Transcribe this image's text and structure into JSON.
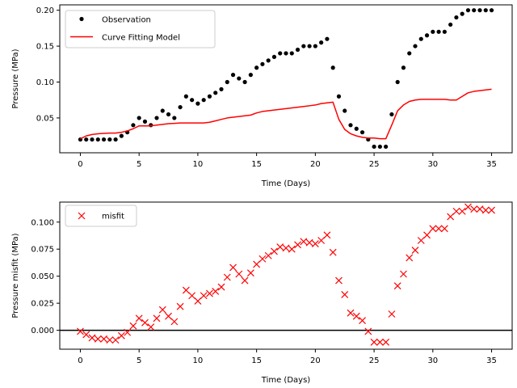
{
  "chart_data": [
    {
      "type": "scatter+line",
      "title": "",
      "xlabel": "Time (Days)",
      "ylabel": "Pressure (MPa)",
      "xlim": [
        -1.75,
        36.75
      ],
      "ylim": [
        0.0015,
        0.2075
      ],
      "xticks": [
        0,
        5,
        10,
        15,
        20,
        25,
        30,
        35
      ],
      "yticks": [
        0.05,
        0.1,
        0.15,
        0.2
      ],
      "ytick_labels": [
        "0.05",
        "0.10",
        "0.15",
        "0.20"
      ],
      "grid": false,
      "legend_position": "top-left",
      "series": [
        {
          "name": "Observation",
          "kind": "scatter",
          "marker": "dot",
          "color": "#000000",
          "x": [
            0,
            0.5,
            1,
            1.5,
            2,
            2.5,
            3,
            3.5,
            4,
            4.5,
            5,
            5.5,
            6,
            6.5,
            7,
            7.5,
            8,
            8.5,
            9,
            9.5,
            10,
            10.5,
            11,
            11.5,
            12,
            12.5,
            13,
            13.5,
            14,
            14.5,
            15,
            15.5,
            16,
            16.5,
            17,
            17.5,
            18,
            18.5,
            19,
            19.5,
            20,
            20.5,
            21,
            21.5,
            22,
            22.5,
            23,
            23.5,
            24,
            24.5,
            25,
            25.5,
            26,
            26.5,
            27,
            27.5,
            28,
            28.5,
            29,
            29.5,
            30,
            30.5,
            31,
            31.5,
            32,
            32.5,
            33,
            33.5,
            34,
            34.5,
            35
          ],
          "y": [
            0.02,
            0.02,
            0.02,
            0.02,
            0.02,
            0.02,
            0.02,
            0.025,
            0.03,
            0.04,
            0.05,
            0.045,
            0.04,
            0.05,
            0.06,
            0.055,
            0.05,
            0.065,
            0.08,
            0.075,
            0.07,
            0.075,
            0.08,
            0.085,
            0.09,
            0.1,
            0.11,
            0.105,
            0.1,
            0.11,
            0.12,
            0.125,
            0.13,
            0.135,
            0.14,
            0.14,
            0.14,
            0.145,
            0.15,
            0.15,
            0.15,
            0.155,
            0.16,
            0.12,
            0.08,
            0.06,
            0.04,
            0.035,
            0.03,
            0.02,
            0.01,
            0.01,
            0.01,
            0.055,
            0.1,
            0.12,
            0.14,
            0.15,
            0.16,
            0.165,
            0.17,
            0.17,
            0.17,
            0.18,
            0.19,
            0.195,
            0.2,
            0.2,
            0.2,
            0.2,
            0.2
          ]
        },
        {
          "name": "Curve Fitting Model",
          "kind": "line",
          "color": "#ff0000",
          "x": [
            0,
            0.5,
            1,
            1.5,
            2,
            2.5,
            3,
            3.5,
            4,
            4.5,
            5,
            5.5,
            6,
            6.5,
            7,
            7.5,
            8,
            8.5,
            9,
            9.5,
            10,
            10.5,
            11,
            11.5,
            12,
            12.5,
            13,
            13.5,
            14,
            14.5,
            15,
            15.5,
            16,
            16.5,
            17,
            17.5,
            18,
            18.5,
            19,
            19.5,
            20,
            20.5,
            21,
            21.5,
            22,
            22.5,
            23,
            23.5,
            24,
            24.5,
            25,
            25.5,
            26,
            26.5,
            27,
            27.5,
            28,
            28.5,
            29,
            29.5,
            30,
            30.5,
            31,
            31.5,
            32,
            32.5,
            33,
            33.5,
            34,
            34.5,
            35
          ],
          "y": [
            0.021,
            0.025,
            0.027,
            0.028,
            0.0285,
            0.029,
            0.029,
            0.03,
            0.032,
            0.035,
            0.039,
            0.039,
            0.039,
            0.04,
            0.041,
            0.042,
            0.0425,
            0.043,
            0.043,
            0.043,
            0.043,
            0.043,
            0.044,
            0.046,
            0.048,
            0.05,
            0.051,
            0.052,
            0.053,
            0.054,
            0.057,
            0.059,
            0.06,
            0.061,
            0.062,
            0.063,
            0.064,
            0.065,
            0.066,
            0.067,
            0.068,
            0.07,
            0.071,
            0.072,
            0.048,
            0.034,
            0.028,
            0.025,
            0.023,
            0.022,
            0.022,
            0.021,
            0.021,
            0.04,
            0.06,
            0.068,
            0.073,
            0.075,
            0.076,
            0.076,
            0.076,
            0.076,
            0.076,
            0.075,
            0.075,
            0.08,
            0.085,
            0.087,
            0.088,
            0.089,
            0.09
          ]
        }
      ]
    },
    {
      "type": "scatter",
      "title": "",
      "xlabel": "Time (Days)",
      "ylabel": "Pressure misfit (MPa)",
      "xlim": [
        -1.75,
        36.75
      ],
      "ylim": [
        -0.0175,
        0.1185
      ],
      "xticks": [
        0,
        5,
        10,
        15,
        20,
        25,
        30,
        35
      ],
      "yticks": [
        0.0,
        0.025,
        0.05,
        0.075,
        0.1
      ],
      "ytick_labels": [
        "0.000",
        "0.025",
        "0.050",
        "0.075",
        "0.100"
      ],
      "grid": false,
      "legend_position": "top-left",
      "reference_line": {
        "y": 0.0,
        "color": "#000000"
      },
      "series": [
        {
          "name": "misfit",
          "kind": "scatter",
          "marker": "x",
          "color": "#ff0000",
          "x": [
            0,
            0.5,
            1,
            1.5,
            2,
            2.5,
            3,
            3.5,
            4,
            4.5,
            5,
            5.5,
            6,
            6.5,
            7,
            7.5,
            8,
            8.5,
            9,
            9.5,
            10,
            10.5,
            11,
            11.5,
            12,
            12.5,
            13,
            13.5,
            14,
            14.5,
            15,
            15.5,
            16,
            16.5,
            17,
            17.5,
            18,
            18.5,
            19,
            19.5,
            20,
            20.5,
            21,
            21.5,
            22,
            22.5,
            23,
            23.5,
            24,
            24.5,
            25,
            25.5,
            26,
            26.5,
            27,
            27.5,
            28,
            28.5,
            29,
            29.5,
            30,
            30.5,
            31,
            31.5,
            32,
            32.5,
            33,
            33.5,
            34,
            34.5,
            35
          ],
          "y": [
            -0.001,
            -0.004,
            -0.007,
            -0.008,
            -0.008,
            -0.009,
            -0.009,
            -0.005,
            -0.002,
            0.004,
            0.011,
            0.007,
            0.003,
            0.011,
            0.019,
            0.013,
            0.008,
            0.022,
            0.037,
            0.032,
            0.027,
            0.032,
            0.034,
            0.036,
            0.04,
            0.049,
            0.058,
            0.052,
            0.046,
            0.053,
            0.061,
            0.066,
            0.069,
            0.073,
            0.077,
            0.076,
            0.075,
            0.079,
            0.082,
            0.081,
            0.08,
            0.083,
            0.088,
            0.072,
            0.046,
            0.033,
            0.016,
            0.013,
            0.009,
            -0.001,
            -0.011,
            -0.011,
            -0.011,
            0.015,
            0.041,
            0.052,
            0.067,
            0.074,
            0.083,
            0.088,
            0.094,
            0.094,
            0.094,
            0.105,
            0.11,
            0.11,
            0.114,
            0.112,
            0.112,
            0.111,
            0.111
          ]
        }
      ]
    }
  ]
}
